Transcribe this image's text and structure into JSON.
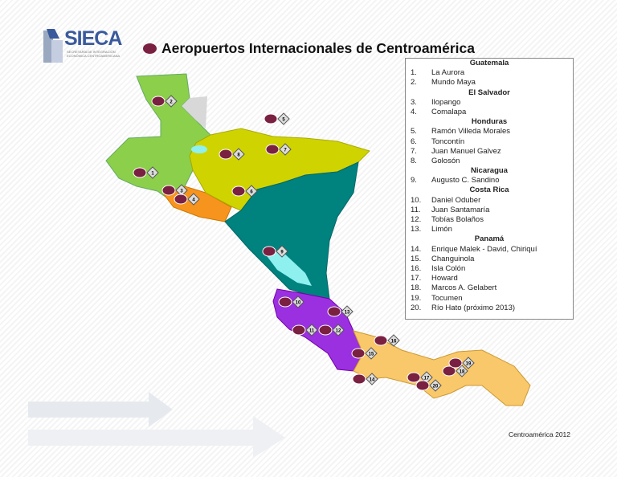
{
  "logo": {
    "name": "SIECA",
    "subtitle": "SECRETARÍA DE INTEGRACIÓN ECONÓMICA CENTROAMERICANA"
  },
  "title": "Aeropuertos Internacionales de Centroamérica",
  "legend": [
    {
      "country": "Guatemala",
      "airports": [
        {
          "n": "1.",
          "name": "La Aurora"
        },
        {
          "n": "2.",
          "name": "Mundo Maya"
        }
      ]
    },
    {
      "country": "El Salvador",
      "airports": [
        {
          "n": "3.",
          "name": "Ilopango"
        },
        {
          "n": "4.",
          "name": "Comalapa"
        }
      ]
    },
    {
      "country": "Honduras",
      "airports": [
        {
          "n": "5.",
          "name": "Ramón Villeda Morales"
        },
        {
          "n": "6.",
          "name": "Toncontín"
        },
        {
          "n": "7.",
          "name": "Juan Manuel Galvez"
        },
        {
          "n": "8.",
          "name": "Golosón"
        }
      ]
    },
    {
      "country": "Nicaragua",
      "airports": [
        {
          "n": "9.",
          "name": "Augusto  C. Sandino"
        }
      ]
    },
    {
      "country": "Costa Rica",
      "airports": [
        {
          "n": "10.",
          "name": "Daniel Oduber"
        },
        {
          "n": "11.",
          "name": "Juan Santamaría"
        },
        {
          "n": "12.",
          "name": "Tobías Bolaños"
        },
        {
          "n": "13.",
          "name": "Limón"
        }
      ]
    },
    {
      "country": "Panamá",
      "airports": [
        {
          "n": "14.",
          "name": "Enrique Malek - David, Chiriquí"
        },
        {
          "n": "15.",
          "name": "Changuinola"
        },
        {
          "n": "16.",
          "name": "Isla Colón"
        },
        {
          "n": "17.",
          "name": "Howard"
        },
        {
          "n": "18.",
          "name": "Marcos A. Gelabert"
        },
        {
          "n": "19.",
          "name": "Tocumen"
        },
        {
          "n": "20.",
          "name": "Río Hato (próximo 2013)"
        }
      ]
    }
  ],
  "country_colors": {
    "Guatemala": "#8ccf4a",
    "El Salvador": "#f7941d",
    "Honduras": "#cfd400",
    "Nicaragua": "#00827f",
    "Costa Rica": "#9a30e0",
    "Panamá": "#f9c86a",
    "lakes": "#8ff0f0"
  },
  "markers": [
    "1",
    "2",
    "3",
    "4",
    "5",
    "6",
    "7",
    "8",
    "9",
    "10",
    "11",
    "12",
    "13",
    "14",
    "15",
    "16",
    "17",
    "18",
    "19",
    "20"
  ],
  "footer": "Centroamérica 2012"
}
